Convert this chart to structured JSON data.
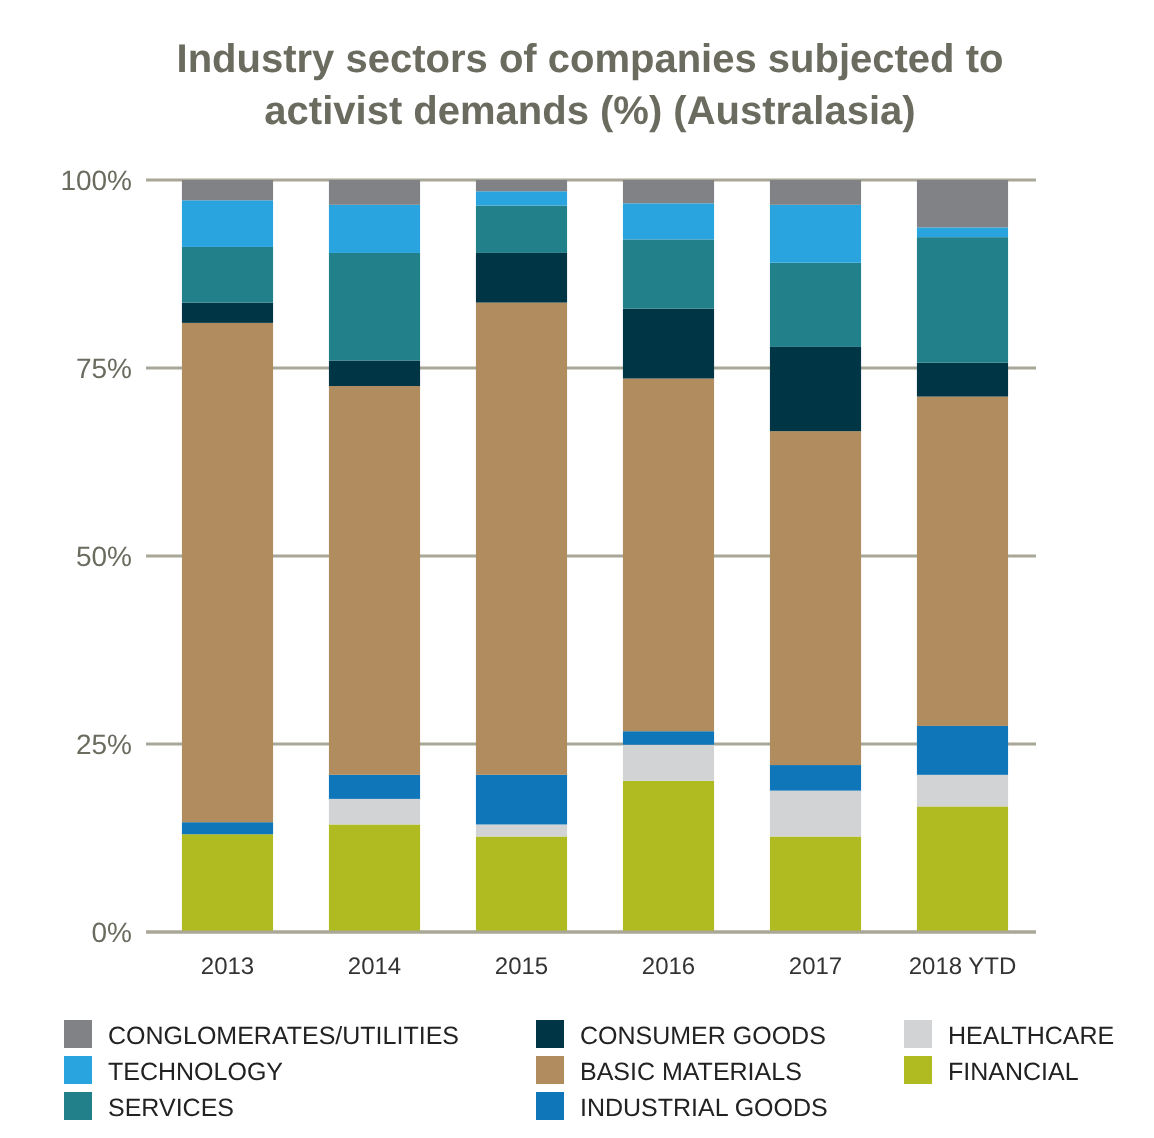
{
  "chart_data": {
    "type": "bar",
    "title": "Industry sectors of companies subjected to activist demands (%) (Australasia)",
    "stacked": true,
    "categories": [
      "2013",
      "2014",
      "2015",
      "2016",
      "2017",
      "2018 YTD"
    ],
    "series": [
      {
        "name": "FINANCIAL",
        "color": "#b0bb21",
        "values": [
          13.0,
          14.3,
          12.7,
          20.1,
          12.7,
          16.7
        ]
      },
      {
        "name": "HEALTHCARE",
        "color": "#d1d3d4",
        "values": [
          0,
          3.4,
          1.6,
          4.8,
          6.1,
          4.2
        ]
      },
      {
        "name": "INDUSTRIAL GOODS",
        "color": "#0f77b9",
        "values": [
          1.6,
          3.2,
          6.6,
          1.8,
          3.4,
          6.5
        ]
      },
      {
        "name": "BASIC MATERIALS",
        "color": "#b08c5f",
        "values": [
          66.4,
          51.7,
          62.8,
          46.9,
          44.4,
          43.8
        ]
      },
      {
        "name": "CONSUMER GOODS",
        "color": "#003545",
        "values": [
          2.7,
          3.4,
          6.6,
          9.3,
          11.2,
          4.5
        ]
      },
      {
        "name": "SERVICES",
        "color": "#22808a",
        "values": [
          7.4,
          14.3,
          6.3,
          9.2,
          11.2,
          16.7
        ]
      },
      {
        "name": "TECHNOLOGY",
        "color": "#29a4de",
        "values": [
          6.2,
          6.4,
          1.9,
          4.8,
          7.7,
          1.3
        ]
      },
      {
        "name": "CONGLOMERATES/UTILITIES",
        "color": "#818285",
        "values": [
          2.7,
          3.3,
          1.5,
          3.1,
          3.3,
          6.3
        ]
      }
    ],
    "ylim": [
      0,
      100
    ],
    "yticks": [
      {
        "value": 0,
        "label": "0%"
      },
      {
        "value": 25,
        "label": "25%"
      },
      {
        "value": 50,
        "label": "50%"
      },
      {
        "value": 75,
        "label": "75%"
      },
      {
        "value": 100,
        "label": "100%"
      }
    ],
    "grid": "y",
    "legend": "bottom"
  }
}
